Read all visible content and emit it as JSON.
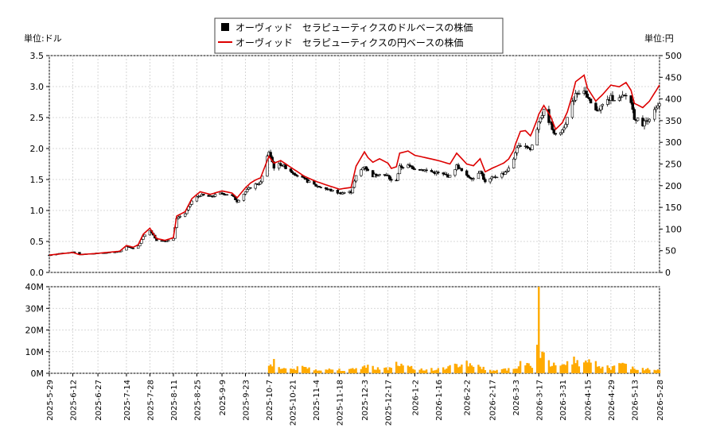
{
  "chart_data": [
    {
      "type": "candlestick",
      "legend": {
        "placement": "top-center",
        "entries": [
          {
            "label": "オーヴィッド　セラピューティクスのドルベースの株価",
            "color": "#000000",
            "marker": "square"
          },
          {
            "label": "オーヴィッド　セラピューティクスの円ベースの株価",
            "color": "#dd0000",
            "marker": "line"
          }
        ]
      },
      "left_unit_label": "単位:ドル",
      "right_unit_label": "単位:円",
      "x_tick_labels": [
        "2025-5-29",
        "2025-6-12",
        "2025-6-27",
        "2025-7-14",
        "2025-7-28",
        "2025-8-11",
        "2025-8-25",
        "2025-9-9",
        "2025-9-23",
        "2025-10-7",
        "2025-10-21",
        "2025-11-4",
        "2025-11-18",
        "2025-12-3",
        "2025-12-17",
        "2026-1-2",
        "2026-1-16",
        "2026-2-2",
        "2026-2-17",
        "2026-3-3",
        "2026-3-17",
        "2026-3-31",
        "2026-4-15",
        "2026-4-29",
        "2026-5-13",
        "2026-5-28"
      ],
      "x_range": [
        "2025-5-29",
        "2026-5-28"
      ],
      "y_left": {
        "min": 0,
        "max": 3.5,
        "ticks": [
          "0.0",
          "0.5",
          "1.0",
          "1.5",
          "2.0",
          "2.5",
          "3.0",
          "3.5"
        ]
      },
      "y_right": {
        "min": 0,
        "max": 500,
        "ticks": [
          "0",
          "50",
          "100",
          "150",
          "200",
          "250",
          "300",
          "350",
          "400",
          "450",
          "500"
        ]
      },
      "grid": true,
      "usd_close_keypoints": [
        [
          "2025-5-29",
          0.28
        ],
        [
          "2025-6-5",
          0.31
        ],
        [
          "2025-6-12",
          0.33
        ],
        [
          "2025-6-16",
          0.29
        ],
        [
          "2025-6-27",
          0.31
        ],
        [
          "2025-7-3",
          0.32
        ],
        [
          "2025-7-10",
          0.34
        ],
        [
          "2025-7-14",
          0.42
        ],
        [
          "2025-7-20",
          0.37
        ],
        [
          "2025-7-24",
          0.58
        ],
        [
          "2025-7-28",
          0.68
        ],
        [
          "2025-8-1",
          0.52
        ],
        [
          "2025-8-6",
          0.5
        ],
        [
          "2025-8-11",
          0.55
        ],
        [
          "2025-8-13",
          0.88
        ],
        [
          "2025-8-18",
          0.95
        ],
        [
          "2025-8-22",
          1.15
        ],
        [
          "2025-8-27",
          1.25
        ],
        [
          "2025-9-2",
          1.22
        ],
        [
          "2025-9-9",
          1.28
        ],
        [
          "2025-9-15",
          1.24
        ],
        [
          "2025-9-18",
          1.15
        ],
        [
          "2025-9-23",
          1.3
        ],
        [
          "2025-9-27",
          1.4
        ],
        [
          "2025-10-2",
          1.45
        ],
        [
          "2025-10-7",
          1.95
        ],
        [
          "2025-10-10",
          1.7
        ],
        [
          "2025-10-14",
          1.75
        ],
        [
          "2025-10-21",
          1.62
        ],
        [
          "2025-10-28",
          1.5
        ],
        [
          "2025-11-4",
          1.4
        ],
        [
          "2025-11-10",
          1.35
        ],
        [
          "2025-11-18",
          1.28
        ],
        [
          "2025-11-25",
          1.3
        ],
        [
          "2025-11-28",
          1.55
        ],
        [
          "2025-12-3",
          1.72
        ],
        [
          "2025-12-7",
          1.55
        ],
        [
          "2025-12-12",
          1.6
        ],
        [
          "2025-12-17",
          1.55
        ],
        [
          "2025-12-21",
          1.4
        ],
        [
          "2025-12-24",
          1.7
        ],
        [
          "2025-12-29",
          1.72
        ],
        [
          "2026-1-2",
          1.68
        ],
        [
          "2026-1-8",
          1.65
        ],
        [
          "2026-1-16",
          1.6
        ],
        [
          "2026-1-23",
          1.55
        ],
        [
          "2026-1-27",
          1.72
        ],
        [
          "2026-2-2",
          1.55
        ],
        [
          "2026-2-6",
          1.52
        ],
        [
          "2026-2-10",
          1.65
        ],
        [
          "2026-2-13",
          1.45
        ],
        [
          "2026-2-17",
          1.52
        ],
        [
          "2026-2-24",
          1.6
        ],
        [
          "2026-3-1",
          1.72
        ],
        [
          "2026-3-3",
          1.95
        ],
        [
          "2026-3-7",
          2.1
        ],
        [
          "2026-3-12",
          1.98
        ],
        [
          "2026-3-15",
          2.2
        ],
        [
          "2026-3-17",
          2.45
        ],
        [
          "2026-3-20",
          2.6
        ],
        [
          "2026-3-24",
          2.4
        ],
        [
          "2026-3-27",
          2.2
        ],
        [
          "2026-3-31",
          2.3
        ],
        [
          "2026-4-4",
          2.55
        ],
        [
          "2026-4-8",
          2.9
        ],
        [
          "2026-4-13",
          2.95
        ],
        [
          "2026-4-15",
          2.8
        ],
        [
          "2026-4-20",
          2.6
        ],
        [
          "2026-4-24",
          2.7
        ],
        [
          "2026-4-29",
          2.82
        ],
        [
          "2026-5-4",
          2.8
        ],
        [
          "2026-5-8",
          2.85
        ],
        [
          "2026-5-11",
          2.75
        ],
        [
          "2026-5-13",
          2.5
        ],
        [
          "2026-5-18",
          2.4
        ],
        [
          "2026-5-22",
          2.5
        ],
        [
          "2026-5-28",
          2.7
        ]
      ],
      "jpy_close_keypoints": [
        [
          "2025-5-29",
          40
        ],
        [
          "2025-6-12",
          46
        ],
        [
          "2025-6-16",
          41
        ],
        [
          "2025-6-27",
          44
        ],
        [
          "2025-7-10",
          49
        ],
        [
          "2025-7-14",
          62
        ],
        [
          "2025-7-20",
          56
        ],
        [
          "2025-7-24",
          88
        ],
        [
          "2025-7-28",
          102
        ],
        [
          "2025-8-1",
          78
        ],
        [
          "2025-8-6",
          74
        ],
        [
          "2025-8-11",
          80
        ],
        [
          "2025-8-13",
          130
        ],
        [
          "2025-8-18",
          140
        ],
        [
          "2025-8-22",
          170
        ],
        [
          "2025-8-27",
          186
        ],
        [
          "2025-9-2",
          180
        ],
        [
          "2025-9-9",
          188
        ],
        [
          "2025-9-15",
          183
        ],
        [
          "2025-9-18",
          172
        ],
        [
          "2025-9-23",
          195
        ],
        [
          "2025-9-27",
          210
        ],
        [
          "2025-10-2",
          218
        ],
        [
          "2025-10-7",
          268
        ],
        [
          "2025-10-10",
          252
        ],
        [
          "2025-10-14",
          258
        ],
        [
          "2025-10-21",
          240
        ],
        [
          "2025-10-28",
          222
        ],
        [
          "2025-11-4",
          210
        ],
        [
          "2025-11-10",
          202
        ],
        [
          "2025-11-18",
          192
        ],
        [
          "2025-11-25",
          196
        ],
        [
          "2025-11-28",
          245
        ],
        [
          "2025-12-3",
          278
        ],
        [
          "2025-12-7",
          252
        ],
        [
          "2025-12-12",
          262
        ],
        [
          "2025-12-17",
          252
        ],
        [
          "2025-12-21",
          228
        ],
        [
          "2025-12-24",
          275
        ],
        [
          "2025-12-29",
          280
        ],
        [
          "2026-1-2",
          270
        ],
        [
          "2026-1-8",
          265
        ],
        [
          "2026-1-16",
          258
        ],
        [
          "2026-1-23",
          250
        ],
        [
          "2026-1-27",
          275
        ],
        [
          "2026-2-2",
          250
        ],
        [
          "2026-2-6",
          246
        ],
        [
          "2026-2-10",
          262
        ],
        [
          "2026-2-13",
          232
        ],
        [
          "2026-2-17",
          240
        ],
        [
          "2026-2-24",
          252
        ],
        [
          "2026-3-1",
          268
        ],
        [
          "2026-3-3",
          295
        ],
        [
          "2026-3-7",
          335
        ],
        [
          "2026-3-12",
          315
        ],
        [
          "2026-3-15",
          340
        ],
        [
          "2026-3-17",
          365
        ],
        [
          "2026-3-20",
          385
        ],
        [
          "2026-3-24",
          360
        ],
        [
          "2026-3-27",
          330
        ],
        [
          "2026-3-31",
          345
        ],
        [
          "2026-4-4",
          378
        ],
        [
          "2026-4-8",
          440
        ],
        [
          "2026-4-13",
          455
        ],
        [
          "2026-4-15",
          425
        ],
        [
          "2026-4-20",
          395
        ],
        [
          "2026-4-24",
          410
        ],
        [
          "2026-4-29",
          432
        ],
        [
          "2026-5-4",
          428
        ],
        [
          "2026-5-8",
          438
        ],
        [
          "2026-5-11",
          420
        ],
        [
          "2026-5-13",
          390
        ],
        [
          "2026-5-18",
          380
        ],
        [
          "2026-5-22",
          395
        ],
        [
          "2026-5-28",
          432
        ]
      ]
    },
    {
      "type": "bar",
      "series": [
        {
          "name": "",
          "color": "#ffaa00"
        }
      ],
      "y_ticks": [
        "0M",
        "10M",
        "20M",
        "30M",
        "40M"
      ],
      "y_range": [
        0,
        40000000
      ],
      "x_range": [
        "2025-5-29",
        "2026-5-28"
      ],
      "volume_keypoints_millions": [
        [
          "2025-5-29",
          0
        ],
        [
          "2025-10-6",
          0
        ],
        [
          "2025-10-7",
          5
        ],
        [
          "2025-10-8",
          4
        ],
        [
          "2025-10-10",
          5.5
        ],
        [
          "2025-10-12",
          3.5
        ],
        [
          "2025-10-14",
          2.5
        ],
        [
          "2025-10-21",
          2
        ],
        [
          "2025-10-28",
          2.8
        ],
        [
          "2025-11-4",
          1.8
        ],
        [
          "2025-11-18",
          1.8
        ],
        [
          "2025-11-25",
          1.6
        ],
        [
          "2025-12-3",
          3.3
        ],
        [
          "2025-12-17",
          2
        ],
        [
          "2025-12-21",
          4.5
        ],
        [
          "2026-1-2",
          2
        ],
        [
          "2026-1-16",
          1.8
        ],
        [
          "2026-2-2",
          4.8
        ],
        [
          "2026-2-17",
          1.2
        ],
        [
          "2026-3-3",
          2.2
        ],
        [
          "2026-3-7",
          7
        ],
        [
          "2026-3-12",
          3
        ],
        [
          "2026-3-15",
          2.5
        ],
        [
          "2026-3-17",
          40
        ],
        [
          "2026-3-18",
          6
        ],
        [
          "2026-3-20",
          8.5
        ],
        [
          "2026-3-24",
          4
        ],
        [
          "2026-3-31",
          3
        ],
        [
          "2026-4-4",
          6.5
        ],
        [
          "2026-4-8",
          6
        ],
        [
          "2026-4-13",
          4
        ],
        [
          "2026-4-15",
          5
        ],
        [
          "2026-4-29",
          2.5
        ],
        [
          "2026-5-8",
          4.5
        ],
        [
          "2026-5-13",
          2
        ],
        [
          "2026-5-28",
          2
        ]
      ]
    }
  ]
}
